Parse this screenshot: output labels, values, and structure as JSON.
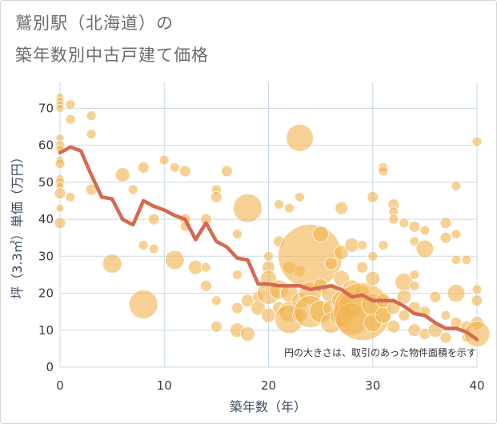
{
  "title_line1": "鷲別駅（北海道）の",
  "title_line2": "築年数別中古戸建て価格",
  "chart_data": {
    "type": "scatter",
    "xlabel": "築年数（年）",
    "ylabel": "坪（3.3㎡）単価（万円）",
    "xlim": [
      0,
      40
    ],
    "ylim": [
      0,
      77
    ],
    "xticks": [
      0,
      10,
      20,
      30,
      40
    ],
    "yticks": [
      0,
      10,
      20,
      30,
      40,
      50,
      60,
      70
    ],
    "grid": true,
    "annotation": "円の大きさは、取引のあった物件面積を示す",
    "colors": {
      "bubble": "#f2b34d",
      "line": "#d46a4f",
      "grid": "#c7d7e6"
    },
    "series": [
      {
        "type": "bubble",
        "points": [
          {
            "x": 0,
            "y": 73,
            "s": 5
          },
          {
            "x": 0,
            "y": 72,
            "s": 5
          },
          {
            "x": 0,
            "y": 71,
            "s": 5
          },
          {
            "x": 0,
            "y": 70,
            "s": 5
          },
          {
            "x": 0,
            "y": 62,
            "s": 5
          },
          {
            "x": 0,
            "y": 60,
            "s": 6
          },
          {
            "x": 0,
            "y": 59,
            "s": 5
          },
          {
            "x": 0,
            "y": 56,
            "s": 5
          },
          {
            "x": 0,
            "y": 55,
            "s": 6
          },
          {
            "x": 0,
            "y": 51,
            "s": 5
          },
          {
            "x": 0,
            "y": 50,
            "s": 6
          },
          {
            "x": 0,
            "y": 49,
            "s": 5
          },
          {
            "x": 0,
            "y": 47,
            "s": 7
          },
          {
            "x": 0,
            "y": 43,
            "s": 5
          },
          {
            "x": 0,
            "y": 39,
            "s": 7
          },
          {
            "x": 1,
            "y": 71,
            "s": 6
          },
          {
            "x": 1,
            "y": 67,
            "s": 6
          },
          {
            "x": 1,
            "y": 46,
            "s": 6
          },
          {
            "x": 3,
            "y": 68,
            "s": 6
          },
          {
            "x": 3,
            "y": 63,
            "s": 6
          },
          {
            "x": 3,
            "y": 48,
            "s": 7
          },
          {
            "x": 5,
            "y": 28,
            "s": 12
          },
          {
            "x": 6,
            "y": 52,
            "s": 9
          },
          {
            "x": 7,
            "y": 48,
            "s": 6
          },
          {
            "x": 8,
            "y": 54,
            "s": 7
          },
          {
            "x": 8,
            "y": 33,
            "s": 6
          },
          {
            "x": 8,
            "y": 17,
            "s": 18
          },
          {
            "x": 9,
            "y": 40,
            "s": 7
          },
          {
            "x": 9,
            "y": 32,
            "s": 6
          },
          {
            "x": 10,
            "y": 56,
            "s": 6
          },
          {
            "x": 11,
            "y": 54,
            "s": 6
          },
          {
            "x": 11,
            "y": 29,
            "s": 12
          },
          {
            "x": 12,
            "y": 53,
            "s": 7
          },
          {
            "x": 12,
            "y": 40,
            "s": 7
          },
          {
            "x": 12,
            "y": 38,
            "s": 6
          },
          {
            "x": 13,
            "y": 27,
            "s": 9
          },
          {
            "x": 14,
            "y": 40,
            "s": 7
          },
          {
            "x": 14,
            "y": 27,
            "s": 6
          },
          {
            "x": 14,
            "y": 22,
            "s": 7
          },
          {
            "x": 15,
            "y": 48,
            "s": 6
          },
          {
            "x": 15,
            "y": 46,
            "s": 7
          },
          {
            "x": 15,
            "y": 18,
            "s": 6
          },
          {
            "x": 15,
            "y": 11,
            "s": 7
          },
          {
            "x": 16,
            "y": 53,
            "s": 7
          },
          {
            "x": 17,
            "y": 36,
            "s": 6
          },
          {
            "x": 17,
            "y": 25,
            "s": 6
          },
          {
            "x": 17,
            "y": 16,
            "s": 7
          },
          {
            "x": 17,
            "y": 10,
            "s": 9
          },
          {
            "x": 18,
            "y": 43,
            "s": 18
          },
          {
            "x": 18,
            "y": 18,
            "s": 8
          },
          {
            "x": 18,
            "y": 9,
            "s": 9
          },
          {
            "x": 19,
            "y": 19,
            "s": 7
          },
          {
            "x": 19,
            "y": 16,
            "s": 9
          },
          {
            "x": 20,
            "y": 30,
            "s": 6
          },
          {
            "x": 20,
            "y": 27,
            "s": 8
          },
          {
            "x": 20,
            "y": 24,
            "s": 10
          },
          {
            "x": 20,
            "y": 20,
            "s": 14
          },
          {
            "x": 20,
            "y": 14,
            "s": 9
          },
          {
            "x": 21,
            "y": 44,
            "s": 6
          },
          {
            "x": 21,
            "y": 34,
            "s": 7
          },
          {
            "x": 21,
            "y": 21,
            "s": 12
          },
          {
            "x": 21,
            "y": 16,
            "s": 8
          },
          {
            "x": 22,
            "y": 43,
            "s": 6
          },
          {
            "x": 22,
            "y": 27,
            "s": 8
          },
          {
            "x": 22,
            "y": 20,
            "s": 11
          },
          {
            "x": 22,
            "y": 15,
            "s": 13
          },
          {
            "x": 22,
            "y": 13,
            "s": 18
          },
          {
            "x": 23,
            "y": 62,
            "s": 17
          },
          {
            "x": 23,
            "y": 46,
            "s": 6
          },
          {
            "x": 23,
            "y": 26,
            "s": 7
          },
          {
            "x": 23,
            "y": 18,
            "s": 10
          },
          {
            "x": 23,
            "y": 14,
            "s": 9
          },
          {
            "x": 24,
            "y": 30,
            "s": 40
          },
          {
            "x": 24,
            "y": 20,
            "s": 14
          },
          {
            "x": 24,
            "y": 15,
            "s": 20
          },
          {
            "x": 25,
            "y": 36,
            "s": 10
          },
          {
            "x": 25,
            "y": 22,
            "s": 9
          },
          {
            "x": 25,
            "y": 15,
            "s": 14
          },
          {
            "x": 26,
            "y": 28,
            "s": 8
          },
          {
            "x": 26,
            "y": 20,
            "s": 12
          },
          {
            "x": 26,
            "y": 16,
            "s": 10
          },
          {
            "x": 26,
            "y": 12,
            "s": 13
          },
          {
            "x": 27,
            "y": 43,
            "s": 8
          },
          {
            "x": 27,
            "y": 31,
            "s": 9
          },
          {
            "x": 27,
            "y": 24,
            "s": 10
          },
          {
            "x": 27,
            "y": 18,
            "s": 12
          },
          {
            "x": 27,
            "y": 14,
            "s": 14
          },
          {
            "x": 28,
            "y": 33,
            "s": 9
          },
          {
            "x": 28,
            "y": 21,
            "s": 12
          },
          {
            "x": 28,
            "y": 17,
            "s": 16
          },
          {
            "x": 28,
            "y": 13,
            "s": 20
          },
          {
            "x": 29,
            "y": 33,
            "s": 6
          },
          {
            "x": 29,
            "y": 27,
            "s": 7
          },
          {
            "x": 29,
            "y": 20,
            "s": 10
          },
          {
            "x": 29,
            "y": 15,
            "s": 36
          },
          {
            "x": 30,
            "y": 46,
            "s": 7
          },
          {
            "x": 30,
            "y": 30,
            "s": 6
          },
          {
            "x": 30,
            "y": 24,
            "s": 9
          },
          {
            "x": 30,
            "y": 17,
            "s": 14
          },
          {
            "x": 30,
            "y": 12,
            "s": 11
          },
          {
            "x": 31,
            "y": 54,
            "s": 6
          },
          {
            "x": 31,
            "y": 53,
            "s": 6
          },
          {
            "x": 31,
            "y": 33,
            "s": 6
          },
          {
            "x": 31,
            "y": 18,
            "s": 9
          },
          {
            "x": 31,
            "y": 14,
            "s": 10
          },
          {
            "x": 32,
            "y": 44,
            "s": 7
          },
          {
            "x": 32,
            "y": 42,
            "s": 6
          },
          {
            "x": 32,
            "y": 40,
            "s": 6
          },
          {
            "x": 32,
            "y": 16,
            "s": 8
          },
          {
            "x": 32,
            "y": 11,
            "s": 8
          },
          {
            "x": 33,
            "y": 39,
            "s": 6
          },
          {
            "x": 33,
            "y": 23,
            "s": 11
          },
          {
            "x": 33,
            "y": 19,
            "s": 9
          },
          {
            "x": 33,
            "y": 14,
            "s": 7
          },
          {
            "x": 34,
            "y": 38,
            "s": 7
          },
          {
            "x": 34,
            "y": 34,
            "s": 6
          },
          {
            "x": 34,
            "y": 25,
            "s": 6
          },
          {
            "x": 34,
            "y": 22,
            "s": 6
          },
          {
            "x": 34,
            "y": 16,
            "s": 8
          },
          {
            "x": 34,
            "y": 10,
            "s": 8
          },
          {
            "x": 35,
            "y": 37,
            "s": 6
          },
          {
            "x": 35,
            "y": 32,
            "s": 11
          },
          {
            "x": 35,
            "y": 15,
            "s": 7
          },
          {
            "x": 35,
            "y": 9,
            "s": 7
          },
          {
            "x": 36,
            "y": 19,
            "s": 7
          },
          {
            "x": 36,
            "y": 10,
            "s": 9
          },
          {
            "x": 37,
            "y": 39,
            "s": 7
          },
          {
            "x": 37,
            "y": 35,
            "s": 7
          },
          {
            "x": 37,
            "y": 14,
            "s": 6
          },
          {
            "x": 37,
            "y": 8,
            "s": 7
          },
          {
            "x": 38,
            "y": 49,
            "s": 6
          },
          {
            "x": 38,
            "y": 36,
            "s": 6
          },
          {
            "x": 38,
            "y": 29,
            "s": 6
          },
          {
            "x": 38,
            "y": 20,
            "s": 11
          },
          {
            "x": 38,
            "y": 12,
            "s": 7
          },
          {
            "x": 39,
            "y": 29,
            "s": 6
          },
          {
            "x": 39,
            "y": 11,
            "s": 7
          },
          {
            "x": 39,
            "y": 8,
            "s": 6
          },
          {
            "x": 40,
            "y": 61,
            "s": 6
          },
          {
            "x": 40,
            "y": 21,
            "s": 6
          },
          {
            "x": 40,
            "y": 18,
            "s": 7
          },
          {
            "x": 40,
            "y": 12,
            "s": 8
          },
          {
            "x": 40,
            "y": 9,
            "s": 16
          }
        ]
      },
      {
        "type": "line",
        "x": [
          0,
          1,
          2,
          3,
          4,
          5,
          6,
          7,
          8,
          9,
          10,
          11,
          12,
          13,
          14,
          15,
          16,
          17,
          18,
          19,
          20,
          21,
          22,
          23,
          24,
          25,
          26,
          27,
          28,
          29,
          30,
          31,
          32,
          33,
          34,
          35,
          36,
          37,
          38,
          39,
          40
        ],
        "y": [
          58,
          59.5,
          58.5,
          52,
          46,
          45.5,
          40,
          38.5,
          45,
          43.5,
          42.5,
          41,
          40,
          34.5,
          39,
          34,
          32.5,
          29.5,
          29,
          22.5,
          22.5,
          22,
          22,
          22,
          21,
          21.5,
          22,
          21,
          19,
          19.5,
          18,
          18,
          18,
          16.5,
          14.5,
          14,
          12,
          10.5,
          10.5,
          9.5,
          7.5
        ]
      }
    ]
  }
}
